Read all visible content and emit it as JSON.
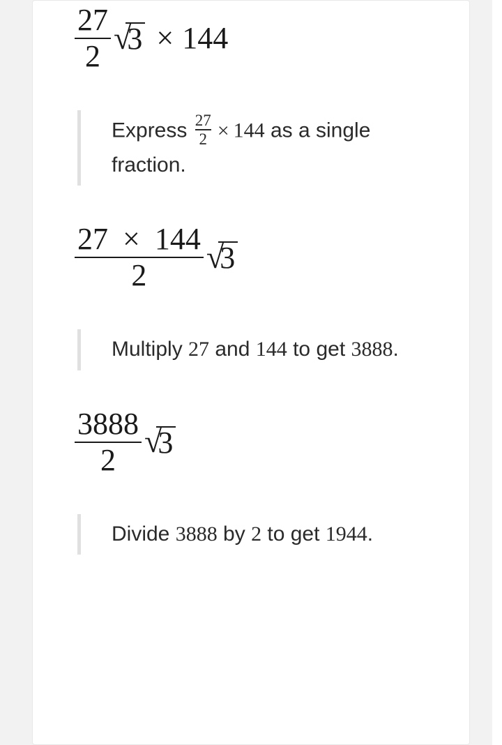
{
  "step1": {
    "frac_num": "27",
    "frac_den": "2",
    "sqrt_arg": "3",
    "times": "×",
    "factor": "144"
  },
  "explain1": {
    "pre": "Express ",
    "frac_num": "27",
    "frac_den": "2",
    "times": "×",
    "factor": "144",
    "post": " as a single fraction."
  },
  "step2": {
    "num_left": "27",
    "times": "×",
    "num_right": "144",
    "den": "2",
    "sqrt_arg": "3"
  },
  "explain2": {
    "pre": "Multiply ",
    "a": "27",
    "mid": " and ",
    "b": "144",
    "mid2": " to get ",
    "res": "3888",
    "post": "."
  },
  "step3": {
    "frac_num": "3888",
    "frac_den": "2",
    "sqrt_arg": "3"
  },
  "explain3": {
    "pre": "Divide ",
    "a": "3888",
    "mid": " by ",
    "b": "2",
    "mid2": " to get ",
    "res": "1944",
    "post": "."
  },
  "styling": {
    "type": "document",
    "body_bg": "#f2f2f2",
    "card_bg": "#ffffff",
    "card_border": "#e8e8e8",
    "text_color": "#1a1a1a",
    "explain_border": "#e0e0e0",
    "formula_fontsize": 44,
    "explain_fontsize": 30,
    "font_family_text": "Segoe UI",
    "font_family_math": "Cambria Math"
  }
}
